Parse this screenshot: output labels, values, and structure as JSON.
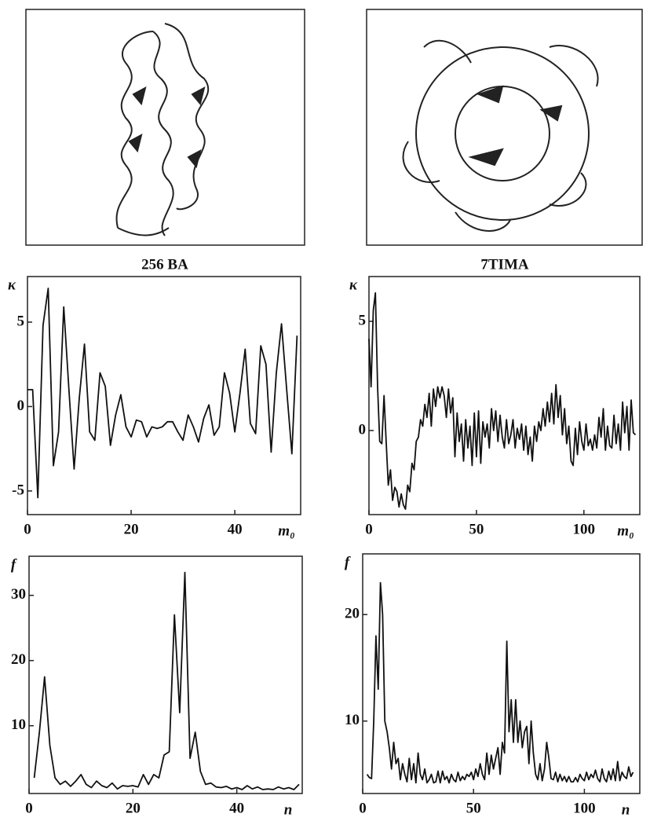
{
  "images": [
    {
      "caption": "256 BA"
    },
    {
      "caption": "7TIMA"
    }
  ],
  "chart_data": [
    {
      "type": "line",
      "ylabel": "κ",
      "xlabel": "m₀",
      "color": "#111111",
      "xlim": [
        0,
        52.7
      ],
      "ylim": [
        -6.4,
        7.7
      ],
      "xticks": [
        0,
        20,
        40
      ],
      "yticks": [
        -5,
        0,
        5
      ],
      "x": [
        0,
        1,
        2,
        3,
        4,
        5,
        6,
        7,
        8,
        9,
        10,
        11,
        12,
        13,
        14,
        15,
        16,
        17,
        18,
        19,
        20,
        21,
        22,
        23,
        24,
        25,
        26,
        27,
        28,
        29,
        30,
        31,
        32,
        33,
        34,
        35,
        36,
        37,
        38,
        39,
        40,
        41,
        42,
        43,
        44,
        45,
        46,
        47,
        48,
        49,
        50,
        51,
        52
      ],
      "values": [
        1,
        1,
        -5.4,
        4.8,
        7,
        -3.5,
        -1.5,
        5.9,
        1,
        -3.7,
        0.5,
        3.7,
        -1.5,
        -2,
        2,
        1.2,
        -2.3,
        -0.5,
        0.7,
        -1.2,
        -1.8,
        -0.8,
        -0.9,
        -1.8,
        -1.2,
        -1.3,
        -1.2,
        -0.9,
        -0.9,
        -1.5,
        -2,
        -0.5,
        -1.2,
        -2.1,
        -0.7,
        0.1,
        -1.7,
        -1.2,
        2,
        0.8,
        -1.5,
        0.8,
        3.4,
        -1,
        -1.6,
        3.6,
        2.5,
        -2.7,
        2,
        4.9,
        1,
        -2.8,
        4.2
      ]
    },
    {
      "type": "line",
      "ylabel": "κ",
      "xlabel": "m₀",
      "color": "#111111",
      "xlim": [
        0,
        126
      ],
      "ylim": [
        -3.85,
        7.05
      ],
      "xticks": [
        0,
        50,
        100
      ],
      "yticks": [
        0,
        5
      ],
      "x": [
        0,
        1,
        2,
        3,
        4,
        5,
        6,
        7,
        8,
        9,
        10,
        11,
        12,
        13,
        14,
        15,
        16,
        17,
        18,
        19,
        20,
        21,
        22,
        23,
        24,
        25,
        26,
        27,
        28,
        29,
        30,
        31,
        32,
        33,
        34,
        35,
        36,
        37,
        38,
        39,
        40,
        41,
        42,
        43,
        44,
        45,
        46,
        47,
        48,
        49,
        50,
        51,
        52,
        53,
        54,
        55,
        56,
        57,
        58,
        59,
        60,
        61,
        62,
        63,
        64,
        65,
        66,
        67,
        68,
        69,
        70,
        71,
        72,
        73,
        74,
        75,
        76,
        77,
        78,
        79,
        80,
        81,
        82,
        83,
        84,
        85,
        86,
        87,
        88,
        89,
        90,
        91,
        92,
        93,
        94,
        95,
        96,
        97,
        98,
        99,
        100,
        101,
        102,
        103,
        104,
        105,
        106,
        107,
        108,
        109,
        110,
        111,
        112,
        113,
        114,
        115,
        116,
        117,
        118,
        119,
        120,
        121,
        122,
        123,
        124
      ],
      "values": [
        4.2,
        2,
        5.5,
        6.3,
        2,
        -0.5,
        -0.6,
        1.6,
        -0.5,
        -2.5,
        -1.8,
        -3.2,
        -2.6,
        -2.8,
        -3.5,
        -2.9,
        -3.4,
        -3.6,
        -2.5,
        -2.8,
        -1.5,
        -1.8,
        -0.5,
        -0.3,
        0.5,
        0.2,
        1.2,
        0.6,
        1.7,
        0.2,
        1.9,
        1.1,
        2,
        1.5,
        2,
        1.6,
        0.6,
        1.9,
        0.8,
        1.5,
        -1.2,
        0.8,
        -0.5,
        0.3,
        -1.4,
        0.5,
        -0.8,
        0.2,
        -1.6,
        0.8,
        -1.2,
        0.9,
        -1.5,
        0.4,
        -0.3,
        0.3,
        -0.8,
        1,
        0,
        0.9,
        -0.5,
        0.7,
        -0.3,
        -0.8,
        0.5,
        -0.6,
        -0.2,
        0.5,
        -0.8,
        0.1,
        -0.4,
        0.3,
        -0.9,
        0.2,
        -1.1,
        -0.3,
        -1.4,
        0.2,
        -0.5,
        0.4,
        0,
        1,
        0.2,
        1.3,
        0.4,
        1.7,
        0.3,
        2.1,
        0.6,
        1.6,
        -0.2,
        1,
        -0.6,
        0.2,
        -1.4,
        -1.6,
        0.1,
        -1.1,
        0.4,
        -0.5,
        -0.9,
        0.3,
        -0.7,
        -0.4,
        -0.9,
        -0.2,
        -0.8,
        0.6,
        -0.3,
        1,
        -0.9,
        0.2,
        -0.7,
        -0.8,
        0.7,
        -0.6,
        0.3,
        -0.9,
        1.3,
        -0.1,
        1.1,
        -0.9,
        1.4,
        -0.1,
        -0.2
      ]
    },
    {
      "type": "line",
      "ylabel": "f",
      "xlabel": "n",
      "color": "#111111",
      "xlim": [
        0,
        52.6
      ],
      "ylim": [
        -0.4,
        36
      ],
      "xticks": [
        0,
        20,
        40
      ],
      "yticks": [
        10,
        20,
        30
      ],
      "x": [
        1,
        2,
        3,
        4,
        5,
        6,
        7,
        8,
        9,
        10,
        11,
        12,
        13,
        14,
        15,
        16,
        17,
        18,
        19,
        20,
        21,
        22,
        23,
        24,
        25,
        26,
        27,
        28,
        29,
        30,
        31,
        32,
        33,
        34,
        35,
        36,
        37,
        38,
        39,
        40,
        41,
        42,
        43,
        44,
        45,
        46,
        47,
        48,
        49,
        50,
        51,
        52
      ],
      "values": [
        2,
        9,
        17.5,
        7,
        2,
        1,
        1.5,
        0.7,
        1.5,
        2.5,
        1,
        0.5,
        1.5,
        0.8,
        0.5,
        1.2,
        0.3,
        0.8,
        0.7,
        0.8,
        0.6,
        2.5,
        1,
        2.5,
        2,
        5.5,
        6,
        27,
        12,
        33.5,
        5,
        9,
        3,
        1,
        1.2,
        0.6,
        0.5,
        0.7,
        0.3,
        0.5,
        0.2,
        0.8,
        0.3,
        0.6,
        0.2,
        0.3,
        0.2,
        0.6,
        0.3,
        0.5,
        0.2,
        1
      ]
    },
    {
      "type": "line",
      "ylabel": "f",
      "xlabel": "n",
      "color": "#111111",
      "xlim": [
        0,
        125
      ],
      "ylim": [
        3.2,
        25.7
      ],
      "xticks": [
        0,
        50,
        100
      ],
      "yticks": [
        10,
        20
      ],
      "x": [
        2,
        3,
        4,
        5,
        6,
        7,
        8,
        9,
        10,
        11,
        12,
        13,
        14,
        15,
        16,
        17,
        18,
        19,
        20,
        21,
        22,
        23,
        24,
        25,
        26,
        27,
        28,
        29,
        30,
        31,
        32,
        33,
        34,
        35,
        36,
        37,
        38,
        39,
        40,
        41,
        42,
        43,
        44,
        45,
        46,
        47,
        48,
        49,
        50,
        51,
        52,
        53,
        54,
        55,
        56,
        57,
        58,
        59,
        60,
        61,
        62,
        63,
        64,
        65,
        66,
        67,
        68,
        69,
        70,
        71,
        72,
        73,
        74,
        75,
        76,
        77,
        78,
        79,
        80,
        81,
        82,
        83,
        84,
        85,
        86,
        87,
        88,
        89,
        90,
        91,
        92,
        93,
        94,
        95,
        96,
        97,
        98,
        99,
        100,
        101,
        102,
        103,
        104,
        105,
        106,
        107,
        108,
        109,
        110,
        111,
        112,
        113,
        114,
        115,
        116,
        117,
        118,
        119,
        120,
        121,
        122
      ],
      "values": [
        5,
        4.7,
        4.6,
        10,
        18,
        13,
        23,
        20,
        10,
        9,
        7.5,
        5.5,
        8,
        6,
        6.5,
        4.5,
        6,
        5,
        4.3,
        6.5,
        4.5,
        6,
        4.2,
        7,
        5,
        4.5,
        5.5,
        4.2,
        4.5,
        5,
        4.2,
        4.3,
        5.3,
        4.2,
        5.3,
        4.5,
        4.8,
        4.2,
        5,
        4.5,
        4.3,
        5.2,
        4.4,
        4.8,
        4.5,
        5,
        4.8,
        5.2,
        4.5,
        5.5,
        4.8,
        6,
        5,
        4.5,
        7,
        5,
        6.8,
        5.5,
        6.5,
        7.5,
        5,
        8,
        7,
        17.5,
        9,
        12,
        8,
        12,
        8,
        10,
        7.5,
        9,
        9.5,
        6,
        10,
        7,
        5,
        4.5,
        6,
        4.4,
        5.5,
        8,
        6.5,
        4.6,
        4.5,
        5.2,
        4.3,
        5,
        4.4,
        4.8,
        4.3,
        4.8,
        4.3,
        4.3,
        4.7,
        4.3,
        5,
        4.6,
        4.4,
        5.2,
        4.5,
        5,
        4.7,
        5.4,
        4.6,
        4.3,
        5.5,
        4.6,
        4.3,
        5.3,
        4.5,
        5.5,
        4.4,
        6.2,
        4.4,
        5.2,
        4.8,
        4.6,
        5.7,
        4.8,
        5.2
      ]
    }
  ]
}
